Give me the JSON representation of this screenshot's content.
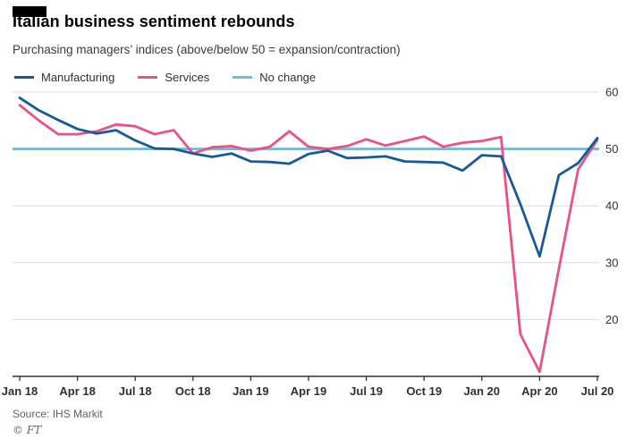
{
  "header": {
    "title": "Italian business sentiment rebounds",
    "subtitle": "Purchasing managers’ indices (above/below 50 = expansion/contraction)"
  },
  "legend": [
    {
      "label": "Manufacturing",
      "color": "#175a99"
    },
    {
      "label": "Services",
      "color": "#ea5287"
    },
    {
      "label": "No change",
      "color": "#5ec5dd"
    }
  ],
  "footer": {
    "source": "Source: IHS Markit",
    "credit": "© FT"
  },
  "chart_data": {
    "type": "line",
    "title": "Italian business sentiment rebounds",
    "subtitle": "Purchasing managers’ indices (above/below 50 = expansion/contraction)",
    "x_labels": [
      "Jan 18",
      "Apr 18",
      "Jul 18",
      "Oct 18",
      "Jan 19",
      "Apr 19",
      "Jul 19",
      "Oct 19",
      "Jan 20",
      "Apr 20",
      "Jul 20"
    ],
    "x_tick_indices": [
      0,
      3,
      6,
      9,
      12,
      15,
      18,
      21,
      24,
      27,
      30
    ],
    "months": [
      "Jan 18",
      "Feb 18",
      "Mar 18",
      "Apr 18",
      "May 18",
      "Jun 18",
      "Jul 18",
      "Aug 18",
      "Sep 18",
      "Oct 18",
      "Nov 18",
      "Dec 18",
      "Jan 19",
      "Feb 19",
      "Mar 19",
      "Apr 19",
      "May 19",
      "Jun 19",
      "Jul 19",
      "Aug 19",
      "Sep 19",
      "Oct 19",
      "Nov 19",
      "Dec 19",
      "Jan 20",
      "Feb 20",
      "Mar 20",
      "Apr 20",
      "May 20",
      "Jun 20",
      "Jul 20"
    ],
    "series": [
      {
        "name": "Manufacturing",
        "color": "#175a99",
        "values": [
          59.0,
          56.8,
          55.1,
          53.5,
          52.7,
          53.3,
          51.5,
          50.1,
          50.0,
          49.2,
          48.6,
          49.2,
          47.8,
          47.7,
          47.4,
          49.1,
          49.7,
          48.4,
          48.5,
          48.7,
          47.8,
          47.7,
          47.6,
          46.2,
          48.9,
          48.7,
          40.3,
          31.1,
          45.4,
          47.5,
          51.9
        ]
      },
      {
        "name": "Services",
        "color": "#ea5287",
        "values": [
          57.7,
          55.0,
          52.6,
          52.6,
          53.1,
          54.3,
          54.0,
          52.6,
          53.3,
          49.2,
          50.3,
          50.5,
          49.7,
          50.4,
          53.1,
          50.4,
          50.0,
          50.5,
          51.7,
          50.6,
          51.4,
          52.2,
          50.4,
          51.1,
          51.4,
          52.1,
          17.4,
          10.8,
          28.9,
          46.4,
          51.6
        ]
      }
    ],
    "reference_line": {
      "label": "No change",
      "value": 50,
      "color": "#5ec5dd"
    },
    "ylim": [
      10,
      60
    ],
    "yticks": [
      20,
      30,
      40,
      50,
      60
    ],
    "grid": true,
    "legend_position": "top-left",
    "y_axis_side": "right"
  }
}
